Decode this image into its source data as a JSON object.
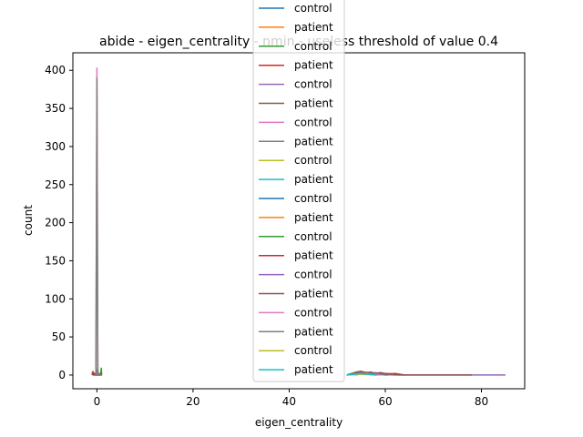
{
  "chart_data": {
    "type": "line",
    "title": "abide - eigen_centrality - nmin - useless threshold of value 0.4",
    "xlabel": "eigen_centrality",
    "ylabel": "count",
    "xlim": [
      -5,
      89
    ],
    "ylim": [
      -18,
      423
    ],
    "xticks": [
      0,
      20,
      40,
      60,
      80
    ],
    "yticks": [
      0,
      50,
      100,
      150,
      200,
      250,
      300,
      350,
      400
    ],
    "grid": false,
    "legend_placement": "upper center",
    "colors": [
      "#1f77b4",
      "#ff7f0e",
      "#2ca02c",
      "#d62728",
      "#9467bd",
      "#8c564b",
      "#e377c2",
      "#7f7f7f",
      "#bcbd22",
      "#17becf"
    ],
    "legend_entries": [
      "control",
      "patient",
      "control",
      "patient",
      "control",
      "patient",
      "control",
      "patient",
      "control",
      "patient",
      "control",
      "patient",
      "control",
      "patient",
      "control",
      "patient",
      "control",
      "patient",
      "control",
      "patient"
    ],
    "series": [
      {
        "points": [
          [
            -1,
            0
          ],
          [
            -0.5,
            2
          ],
          [
            0,
            0
          ],
          [
            0.3,
            0
          ],
          [
            1,
            0
          ]
        ]
      },
      {
        "points": [
          [
            -1,
            0
          ],
          [
            -0.8,
            5
          ],
          [
            -0.6,
            0
          ],
          [
            0,
            0
          ],
          [
            1,
            0
          ]
        ]
      },
      {
        "points": [
          [
            0,
            0
          ],
          [
            0.2,
            6
          ],
          [
            0.4,
            0
          ],
          [
            0.8,
            0
          ],
          [
            0.9,
            9
          ],
          [
            1,
            0
          ]
        ]
      },
      {
        "points": [
          [
            -1,
            0
          ],
          [
            -0.7,
            3
          ],
          [
            -0.4,
            0
          ],
          [
            0.5,
            0
          ],
          [
            0.7,
            2
          ],
          [
            1,
            0
          ]
        ]
      },
      {
        "points": [
          [
            0,
            0
          ],
          [
            0.1,
            8
          ],
          [
            0.2,
            0
          ],
          [
            0.6,
            0
          ],
          [
            1,
            0
          ]
        ]
      },
      {
        "points": [
          [
            -1,
            0
          ],
          [
            -0.9,
            4
          ],
          [
            -0.8,
            0
          ],
          [
            0.3,
            0
          ],
          [
            1,
            0
          ]
        ]
      },
      {
        "points": [
          [
            -0.2,
            0
          ],
          [
            0,
            403
          ],
          [
            0.2,
            0
          ],
          [
            0.5,
            0
          ],
          [
            1,
            0
          ]
        ]
      },
      {
        "points": [
          [
            -0.2,
            0
          ],
          [
            0,
            390
          ],
          [
            0.2,
            0
          ],
          [
            0.5,
            0
          ],
          [
            1,
            0
          ]
        ]
      },
      {
        "points": [
          [
            52,
            0
          ],
          [
            53,
            1
          ],
          [
            54,
            0
          ],
          [
            55,
            2
          ],
          [
            56,
            1
          ],
          [
            58,
            0
          ],
          [
            60,
            1
          ],
          [
            62,
            0
          ],
          [
            64,
            0
          ]
        ]
      },
      {
        "points": [
          [
            52,
            0
          ],
          [
            53,
            2
          ],
          [
            54,
            1
          ],
          [
            55,
            3
          ],
          [
            56,
            1
          ],
          [
            57,
            2
          ],
          [
            58,
            0
          ],
          [
            60,
            1
          ],
          [
            62,
            0
          ],
          [
            64,
            0
          ]
        ]
      },
      {
        "points": [
          [
            52,
            0
          ],
          [
            54,
            2
          ],
          [
            55,
            1
          ],
          [
            56,
            3
          ],
          [
            57,
            1
          ],
          [
            58,
            2
          ],
          [
            60,
            0
          ],
          [
            62,
            1
          ],
          [
            63,
            0
          ]
        ]
      },
      {
        "points": [
          [
            52,
            0
          ],
          [
            53,
            1
          ],
          [
            54,
            3
          ],
          [
            55,
            2
          ],
          [
            56,
            4
          ],
          [
            57,
            2
          ],
          [
            58,
            3
          ],
          [
            59,
            1
          ],
          [
            61,
            2
          ],
          [
            63,
            0
          ]
        ]
      },
      {
        "points": [
          [
            52,
            0
          ],
          [
            53,
            2
          ],
          [
            55,
            1
          ],
          [
            56,
            3
          ],
          [
            57,
            2
          ],
          [
            58,
            1
          ],
          [
            60,
            2
          ],
          [
            62,
            0
          ]
        ]
      },
      {
        "points": [
          [
            52,
            0
          ],
          [
            54,
            3
          ],
          [
            55,
            4
          ],
          [
            56,
            2
          ],
          [
            57,
            3
          ],
          [
            58,
            2
          ],
          [
            59,
            3
          ],
          [
            60,
            1
          ],
          [
            62,
            2
          ],
          [
            64,
            0
          ]
        ]
      },
      {
        "points": [
          [
            52,
            0
          ],
          [
            53,
            1
          ],
          [
            54,
            2
          ],
          [
            55,
            4
          ],
          [
            56,
            3
          ],
          [
            57,
            2
          ],
          [
            58,
            3
          ],
          [
            59,
            2
          ],
          [
            61,
            1
          ],
          [
            63,
            0
          ],
          [
            70,
            0
          ],
          [
            78,
            0
          ],
          [
            85,
            0
          ]
        ]
      },
      {
        "points": [
          [
            52,
            0
          ],
          [
            53,
            2
          ],
          [
            54,
            4
          ],
          [
            55,
            5
          ],
          [
            56,
            3
          ],
          [
            57,
            4
          ],
          [
            58,
            2
          ],
          [
            59,
            3
          ],
          [
            60,
            2
          ],
          [
            62,
            1
          ],
          [
            64,
            0
          ],
          [
            70,
            0
          ],
          [
            78,
            0
          ]
        ]
      },
      {
        "points": [
          [
            52,
            0
          ],
          [
            54,
            1
          ],
          [
            56,
            2
          ],
          [
            58,
            1
          ],
          [
            60,
            0
          ]
        ]
      },
      {
        "points": [
          [
            52,
            0
          ],
          [
            54,
            2
          ],
          [
            56,
            1
          ],
          [
            58,
            2
          ],
          [
            60,
            0
          ]
        ]
      },
      {
        "points": [
          [
            52,
            0
          ],
          [
            55,
            1
          ],
          [
            58,
            0
          ]
        ]
      },
      {
        "points": [
          [
            52,
            0
          ],
          [
            55,
            2
          ],
          [
            58,
            0
          ]
        ]
      }
    ]
  }
}
